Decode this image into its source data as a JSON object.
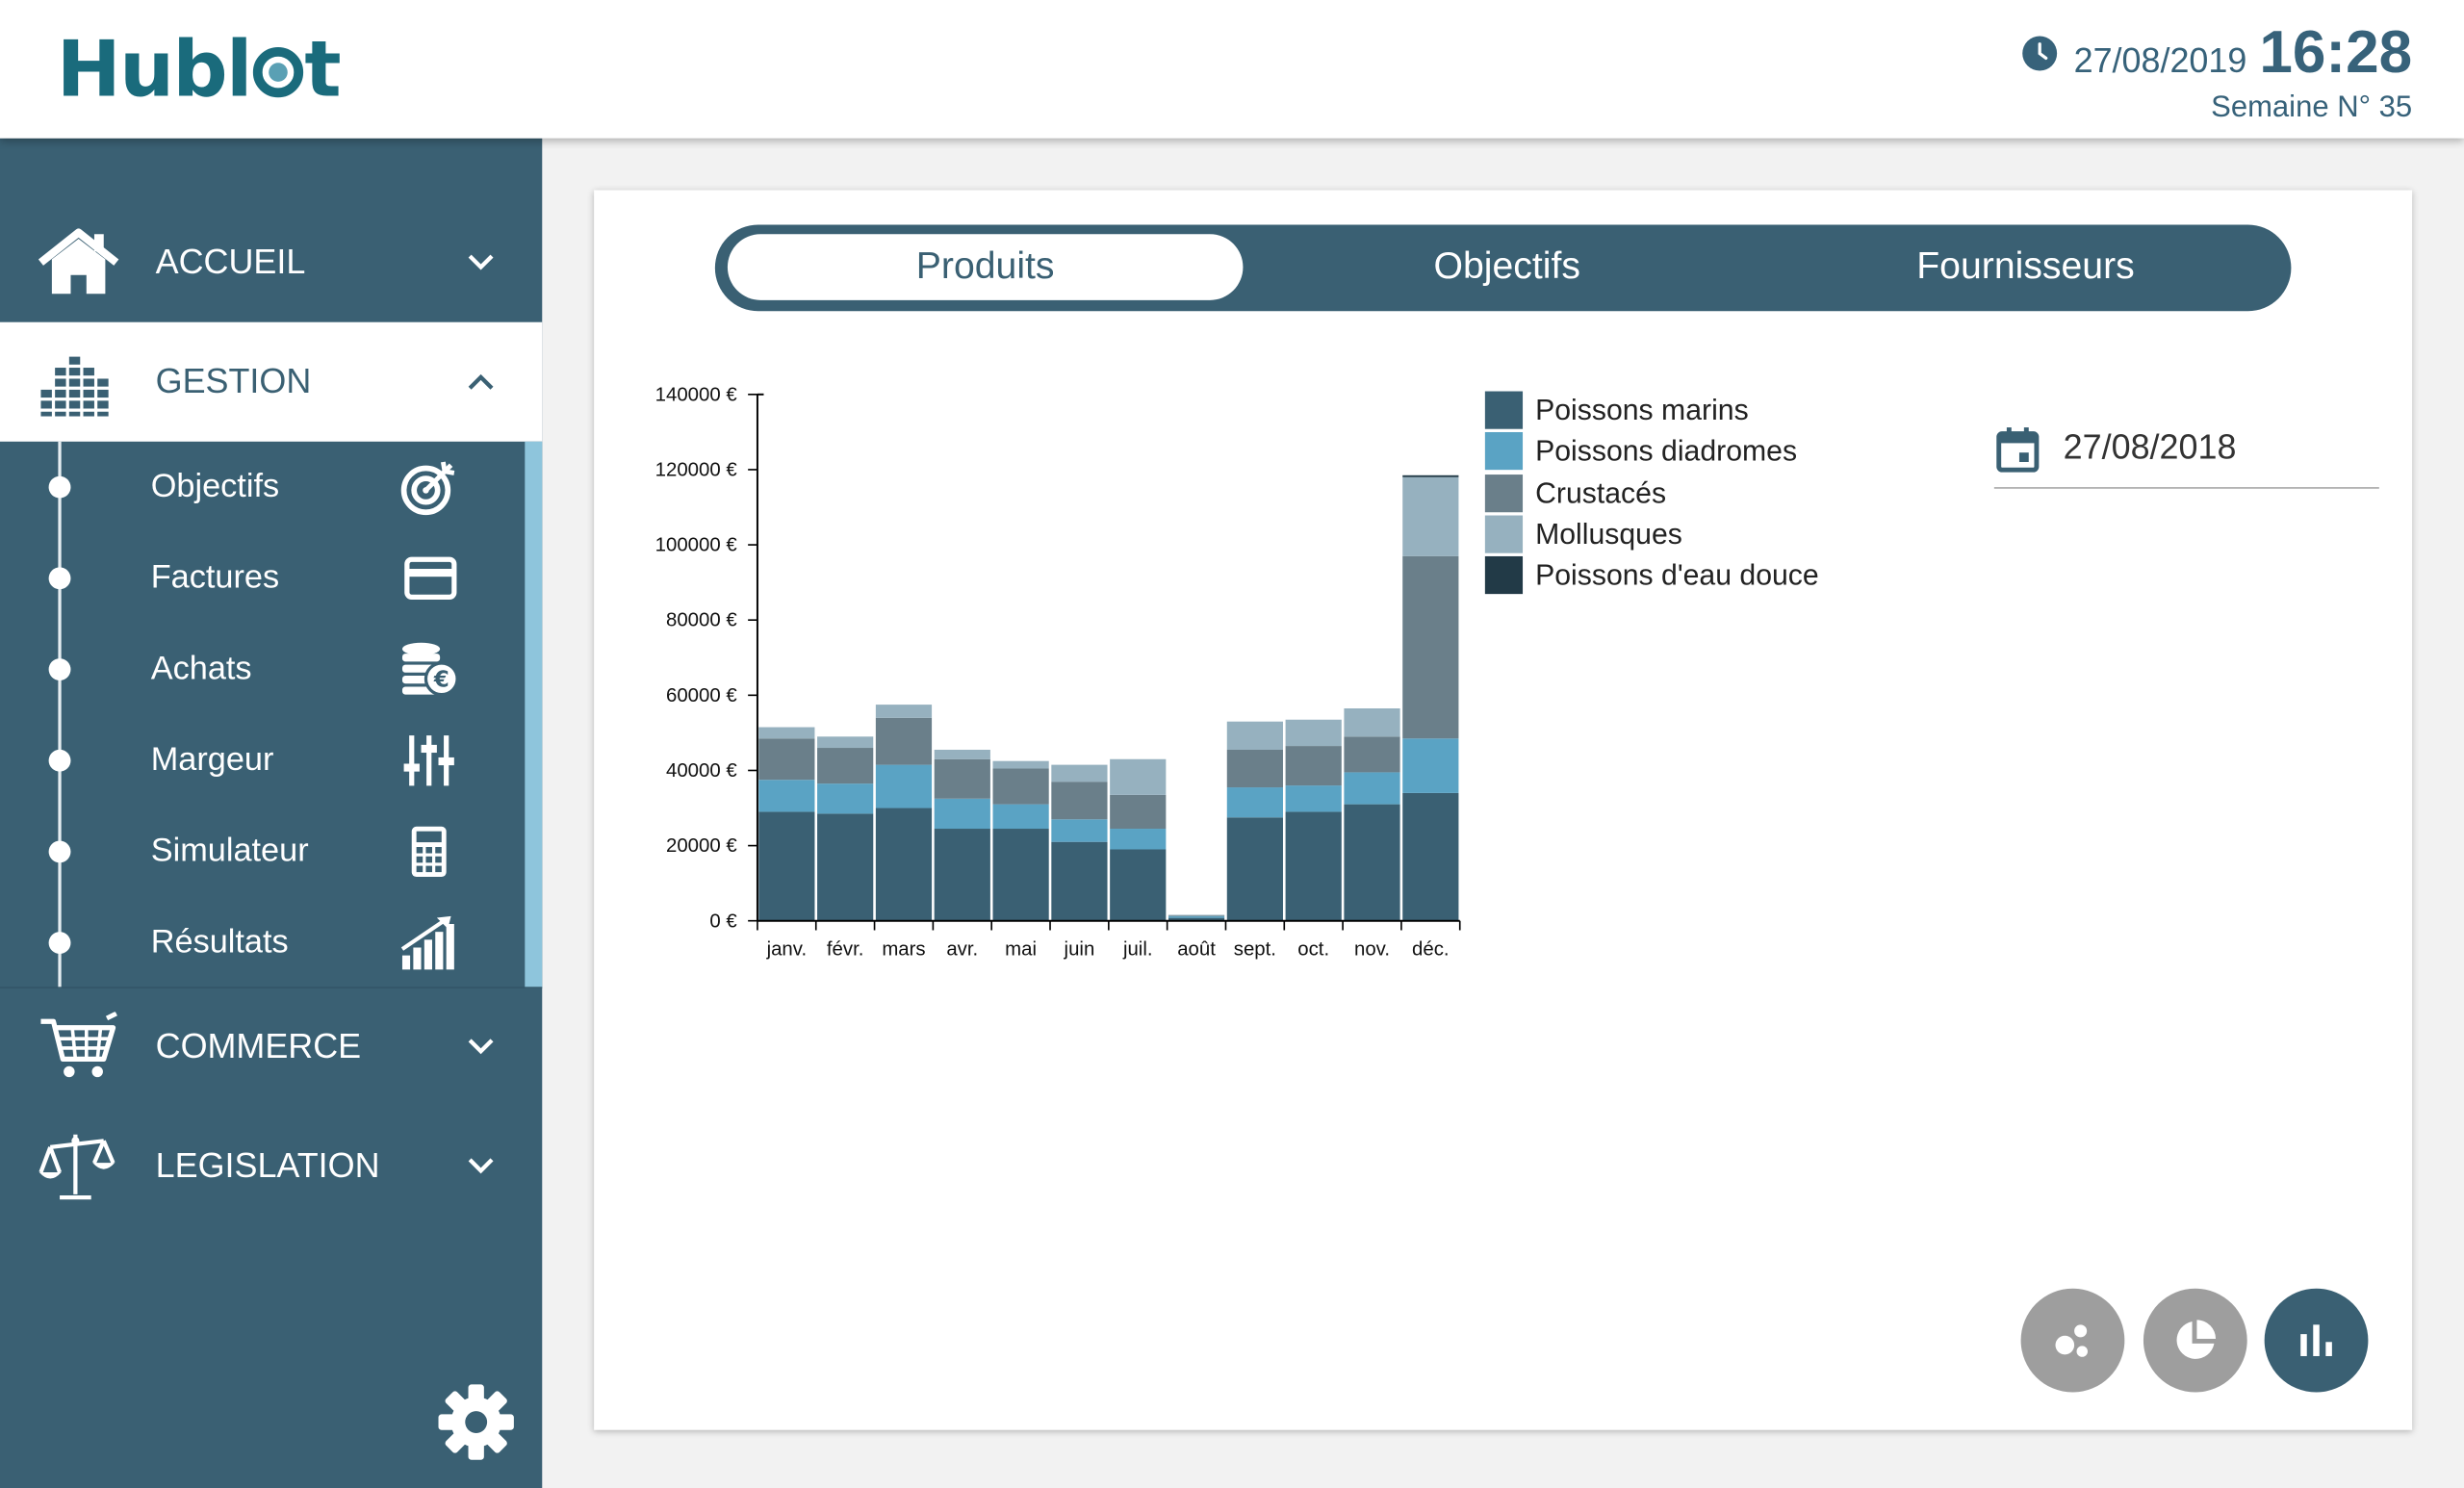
{
  "header": {
    "logo": "Hubl t",
    "date": "27/08/2019",
    "time": "16:28",
    "week": "Semaine N° 35"
  },
  "sidebar": {
    "sections": [
      {
        "label": "ACCUEIL",
        "icon": "home-icon",
        "expanded": false
      },
      {
        "label": "GESTION",
        "icon": "gestion-bars-icon",
        "expanded": true
      },
      {
        "label": "COMMERCE",
        "icon": "shopping-cart-icon",
        "expanded": false
      },
      {
        "label": "LEGISLATION",
        "icon": "balance-scale-icon",
        "expanded": false
      }
    ],
    "gestion_items": [
      {
        "label": "Objectifs",
        "icon": "target-icon"
      },
      {
        "label": "Factures",
        "icon": "credit-card-icon"
      },
      {
        "label": "Achats",
        "icon": "coins-euro-icon"
      },
      {
        "label": "Margeur",
        "icon": "sliders-icon"
      },
      {
        "label": "Simulateur",
        "icon": "calculator-icon"
      },
      {
        "label": "Résultats",
        "icon": "growth-chart-icon"
      }
    ],
    "settings_icon": "gear-icon"
  },
  "tabs": [
    {
      "label": "Produits",
      "active": true
    },
    {
      "label": "Objectifs",
      "active": false
    },
    {
      "label": "Fournisseurs",
      "active": false
    }
  ],
  "date_field": {
    "value": "27/08/2018",
    "icon": "calendar-icon"
  },
  "view_buttons": [
    {
      "icon": "bubble-chart-icon",
      "active": false
    },
    {
      "icon": "pie-chart-icon",
      "active": false
    },
    {
      "icon": "bar-chart-icon",
      "active": true
    }
  ],
  "colors": {
    "primary": "#3a6073",
    "accent": "#8ec5dc",
    "button_inactive": "#9e9e9e"
  },
  "chart_data": {
    "type": "bar",
    "stacked": true,
    "categories": [
      "janv.",
      "févr.",
      "mars",
      "avr.",
      "mai",
      "juin",
      "juil.",
      "août",
      "sept.",
      "oct.",
      "nov.",
      "déc."
    ],
    "series": [
      {
        "name": "Poissons marins",
        "color": "#3a6073",
        "values": [
          29000,
          28500,
          30000,
          24500,
          24500,
          21000,
          19000,
          800,
          27500,
          29000,
          31000,
          34000
        ]
      },
      {
        "name": "Poissons diadromes",
        "color": "#5aa3c4",
        "values": [
          8500,
          8000,
          11500,
          8000,
          6500,
          6000,
          5500,
          400,
          8000,
          7000,
          8500,
          14500
        ]
      },
      {
        "name": "Crustacés",
        "color": "#6a7f8a",
        "values": [
          11000,
          9500,
          12500,
          10500,
          9500,
          10000,
          9000,
          200,
          10000,
          10500,
          9500,
          48500
        ]
      },
      {
        "name": "Mollusques",
        "color": "#96b1bf",
        "values": [
          3000,
          3000,
          3500,
          2500,
          2000,
          4500,
          9500,
          200,
          7500,
          7000,
          7500,
          21000
        ]
      },
      {
        "name": "Poissons d'eau douce",
        "color": "#223a47",
        "values": [
          0,
          0,
          0,
          0,
          0,
          0,
          0,
          0,
          0,
          0,
          0,
          500
        ]
      }
    ],
    "ylim": [
      0,
      140000
    ],
    "yticks": [
      0,
      20000,
      40000,
      60000,
      80000,
      100000,
      120000,
      140000
    ],
    "ytick_labels": [
      "0 €",
      "20000 €",
      "40000 €",
      "60000 €",
      "80000 €",
      "100000 €",
      "120000 €",
      "140000 €"
    ],
    "legend_position": "right"
  }
}
